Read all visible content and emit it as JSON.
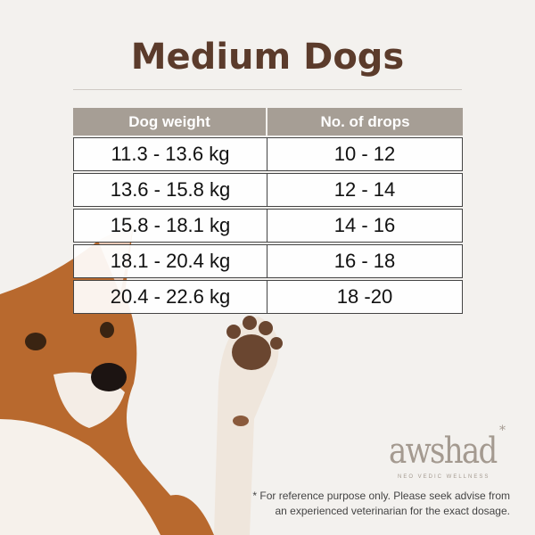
{
  "title": "Medium Dogs",
  "table": {
    "headers": [
      "Dog weight",
      "No. of drops"
    ],
    "rows": [
      [
        "11.3 - 13.6 kg",
        "10 - 12"
      ],
      [
        "13.6 - 15.8 kg",
        "12 - 14"
      ],
      [
        "15.8 - 18.1 kg",
        "14 - 16"
      ],
      [
        "18.1 - 20.4 kg",
        "16 - 18"
      ],
      [
        "20.4 - 22.6 kg",
        "18 -20"
      ]
    ]
  },
  "brand": {
    "name": "awshad",
    "tagline": "NEO VEDIC WELLNESS"
  },
  "note": {
    "line1": "* For reference purpose only. Please seek advise from",
    "line2": "an experienced veterinarian for the exact dosage."
  },
  "colors": {
    "title": "#5b3b2b",
    "header": "#a69e95",
    "brand": "#a49a90"
  }
}
